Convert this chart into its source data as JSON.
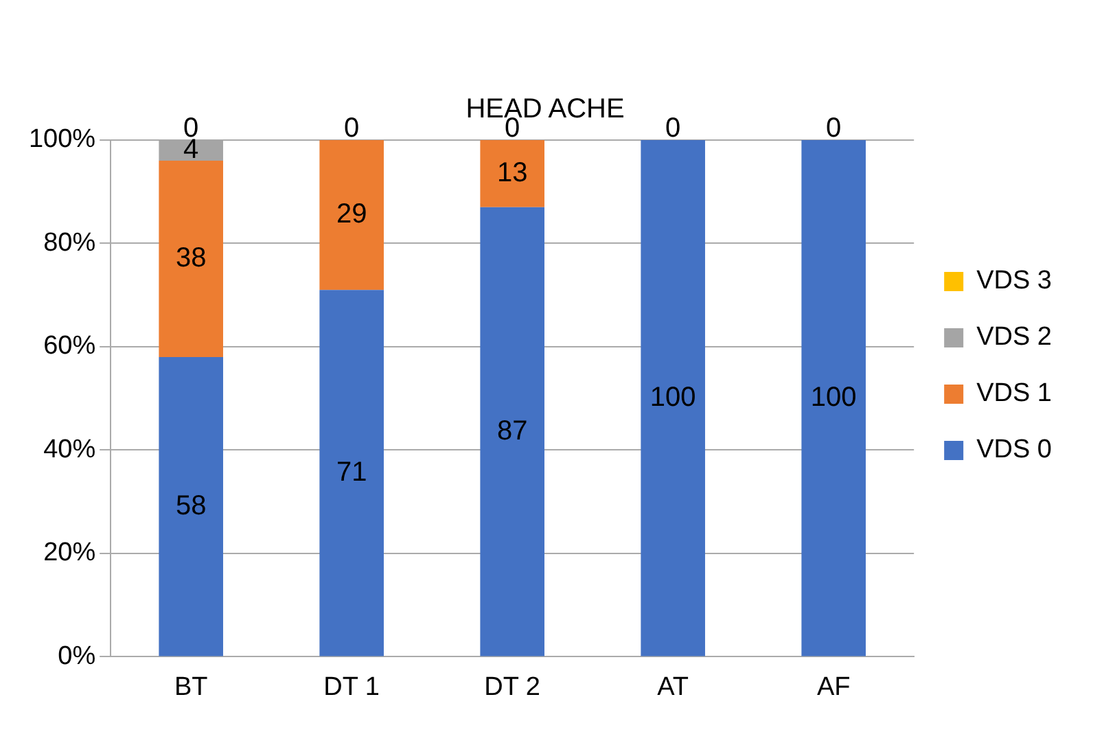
{
  "chart_data": {
    "type": "bar",
    "title": "HEAD ACHE",
    "categories": [
      "BT",
      "DT 1",
      "DT 2",
      "AT",
      "AF"
    ],
    "stacked": true,
    "series": [
      {
        "name": "VDS 0",
        "color": "#4472c4",
        "values": [
          58,
          71,
          87,
          100,
          100
        ],
        "value_labels": [
          "58",
          "71",
          "87",
          "100",
          "100"
        ]
      },
      {
        "name": "VDS 1",
        "color": "#ed7d31",
        "values": [
          38,
          29,
          13,
          0,
          0
        ],
        "value_labels": [
          "38",
          "29",
          "13",
          null,
          null
        ]
      },
      {
        "name": "VDS 2",
        "color": "#a5a5a5",
        "values": [
          4,
          0,
          0,
          0,
          0
        ],
        "value_labels": [
          "4",
          null,
          null,
          null,
          null
        ]
      },
      {
        "name": "VDS 3",
        "color": "#ffc000",
        "values": [
          0,
          0,
          0,
          0,
          0
        ],
        "value_labels": [
          "0",
          "0",
          "0",
          "0",
          "0"
        ]
      }
    ],
    "ylim": [
      0,
      100
    ],
    "yticks": [
      {
        "value": 0,
        "label": "0%"
      },
      {
        "value": 20,
        "label": "20%"
      },
      {
        "value": 40,
        "label": "40%"
      },
      {
        "value": 60,
        "label": "60%"
      },
      {
        "value": 80,
        "label": "80%"
      },
      {
        "value": 100,
        "label": "100%"
      }
    ],
    "grid": "y",
    "legend": "right"
  }
}
